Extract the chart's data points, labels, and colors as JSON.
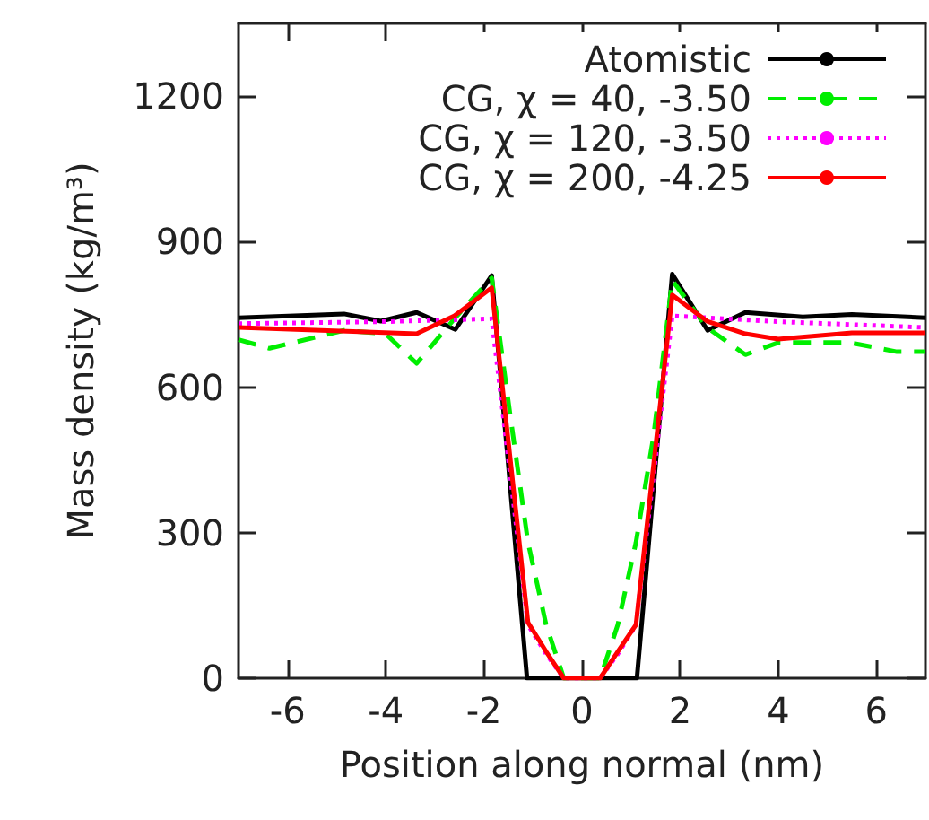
{
  "chart_data": {
    "type": "line",
    "xlabel": "Position along normal (nm)",
    "ylabel": "Mass density (kg/m³)",
    "xlim": [
      -7,
      7
    ],
    "ylim": [
      0,
      1350
    ],
    "xticks": [
      -6,
      -4,
      -2,
      0,
      2,
      4,
      6
    ],
    "yticks": [
      0,
      300,
      600,
      900,
      1200
    ],
    "grid": false,
    "legend": "top right",
    "marker": "none",
    "series": [
      {
        "name": "Atomistic",
        "color": "#000000",
        "line_style": "solid",
        "x": [
          -7,
          -4.85,
          -4.1,
          -3.37,
          -2.58,
          -1.84,
          -1.12,
          1.12,
          1.84,
          2.56,
          3.33,
          4.5,
          5.5,
          7
        ],
        "values": [
          743,
          751,
          736,
          754,
          719,
          830,
          0,
          0,
          833,
          717,
          754,
          745,
          750,
          743
        ]
      },
      {
        "name": "CG, χ = 40, -3.50",
        "color": "#00ee00",
        "line_style": "dashed",
        "x": [
          -7,
          -6.37,
          -4.85,
          -4.0,
          -3.37,
          -2.6,
          -1.84,
          -1.46,
          -1.1,
          -0.73,
          -0.37,
          0.37,
          0.73,
          1.1,
          1.46,
          1.84,
          2.55,
          3.33,
          4.0,
          5.46,
          6.42,
          7
        ],
        "values": [
          698,
          680,
          717,
          710,
          649,
          741,
          825,
          540,
          280,
          110,
          0,
          0,
          110,
          280,
          500,
          820,
          723,
          667,
          692,
          692,
          673,
          673
        ]
      },
      {
        "name": "CG, χ = 120, -3.50",
        "color": "#ff00ff",
        "line_style": "dotted",
        "x": [
          -7,
          -4,
          -1.84,
          -1.1,
          -0.73,
          -0.37,
          0.37,
          0.73,
          1.1,
          1.84,
          4,
          7
        ],
        "values": [
          731,
          735,
          741,
          110,
          50,
          0,
          0,
          50,
          110,
          747,
          735,
          723
        ]
      },
      {
        "name": "CG, χ = 200, -4.25",
        "color": "#ff0000",
        "line_style": "solid",
        "x": [
          -7,
          -3.37,
          -2.6,
          -1.84,
          -1.1,
          -0.73,
          -0.37,
          0.37,
          0.73,
          1.1,
          1.84,
          2.55,
          3.33,
          4.0,
          5.5,
          7
        ],
        "values": [
          723,
          710,
          747,
          805,
          115,
          55,
          0,
          0,
          55,
          110,
          790,
          736,
          710,
          699,
          712,
          712
        ]
      }
    ]
  }
}
